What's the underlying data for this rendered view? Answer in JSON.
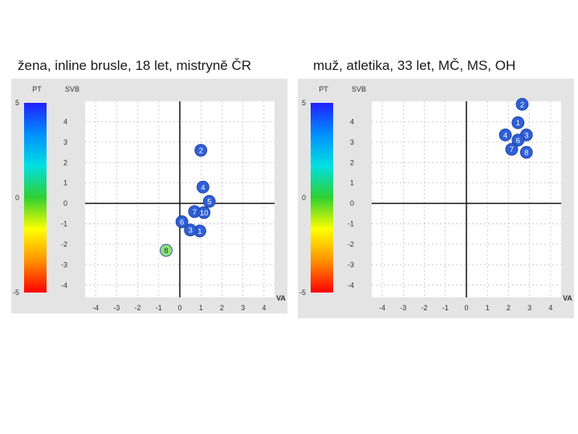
{
  "colors": {
    "panel_bg": "#e4e4e4",
    "plot_bg": "#ffffff",
    "point_fill": "#2f5fd6",
    "point_stroke": "#1a3c9a",
    "point_low": "#8ee07a"
  },
  "chart_data": [
    {
      "type": "scatter",
      "title": "žena, inline brusle, 18 let, mistryně ČR",
      "colorbar_label": "PT",
      "colorbar_ticks": [
        "5",
        "0",
        "-5"
      ],
      "ylabel": "SVB",
      "xlabel": "VA",
      "xlim": [
        -4.5,
        4.5
      ],
      "ylim": [
        -4.6,
        5.0
      ],
      "x_ticks": [
        "-4",
        "-3",
        "-2",
        "-1",
        "0",
        "1",
        "2",
        "3",
        "4"
      ],
      "y_ticks": [
        "4",
        "3",
        "2",
        "1",
        "0",
        "-1",
        "-2",
        "-3",
        "-4"
      ],
      "points": [
        {
          "label": "1",
          "x": 0.95,
          "y": -1.35,
          "pt": 3.5
        },
        {
          "label": "2",
          "x": 1.0,
          "y": 2.6,
          "pt": 4.0
        },
        {
          "label": "3",
          "x": 0.5,
          "y": -1.3,
          "pt": 3.5
        },
        {
          "label": "4",
          "x": 1.1,
          "y": 0.8,
          "pt": 4.0
        },
        {
          "label": "5",
          "x": 1.4,
          "y": 0.1,
          "pt": 3.8
        },
        {
          "label": "6",
          "x": 0.1,
          "y": -0.9,
          "pt": 3.5
        },
        {
          "label": "7",
          "x": 0.7,
          "y": -0.4,
          "pt": 3.5
        },
        {
          "label": "8",
          "x": -0.65,
          "y": -2.3,
          "pt": 1.5
        },
        {
          "label": "10",
          "x": 1.15,
          "y": -0.45,
          "pt": 3.8
        }
      ]
    },
    {
      "type": "scatter",
      "title": "muž, atletika, 33 let, MČ, MS, OH",
      "colorbar_label": "PT",
      "colorbar_ticks": [
        "5",
        "0",
        "-5"
      ],
      "ylabel": "SVB",
      "xlabel": "VA",
      "xlim": [
        -4.5,
        4.5
      ],
      "ylim": [
        -4.6,
        5.0
      ],
      "x_ticks": [
        "-4",
        "-3",
        "-2",
        "-1",
        "0",
        "1",
        "2",
        "3",
        "4"
      ],
      "y_ticks": [
        "4",
        "3",
        "2",
        "1",
        "0",
        "-1",
        "-2",
        "-3",
        "-4"
      ],
      "points": [
        {
          "label": "2",
          "x": 2.65,
          "y": 4.85,
          "pt": 4.8
        },
        {
          "label": "1",
          "x": 2.45,
          "y": 3.95,
          "pt": 4.5
        },
        {
          "label": "4",
          "x": 1.85,
          "y": 3.35,
          "pt": 4.0
        },
        {
          "label": "3",
          "x": 2.85,
          "y": 3.35,
          "pt": 4.5
        },
        {
          "label": "6",
          "x": 2.45,
          "y": 3.1,
          "pt": 4.2
        },
        {
          "label": "7",
          "x": 2.15,
          "y": 2.65,
          "pt": 4.2
        },
        {
          "label": "8",
          "x": 2.85,
          "y": 2.5,
          "pt": 4.3
        }
      ]
    }
  ]
}
